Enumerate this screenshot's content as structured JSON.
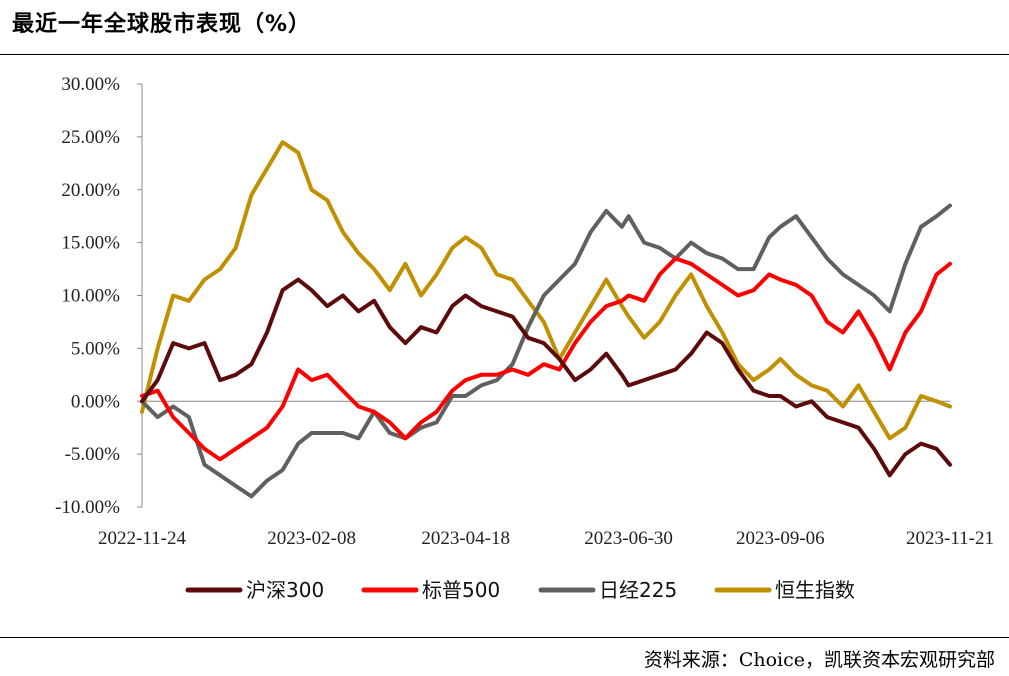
{
  "title": "最近一年全球股市表现（%）",
  "source": "资料来源：Choice，凯联资本宏观研究部",
  "chart_data": {
    "type": "line",
    "y_tick_labels": [
      "30.00%",
      "25.00%",
      "20.00%",
      "15.00%",
      "10.00%",
      "5.00%",
      "0.00%",
      "-5.00%",
      "-10.00%"
    ],
    "y_ticks": [
      30,
      25,
      20,
      15,
      10,
      5,
      0,
      -5,
      -10
    ],
    "ylim": [
      -10,
      30
    ],
    "x_tick_labels": [
      "2022-11-24",
      "2023-02-08",
      "2023-04-18",
      "2023-06-30",
      "2023-09-06",
      "2023-11-21"
    ],
    "x_range": [
      "2022-11-24",
      "2023-11-21"
    ],
    "legend_position": "bottom",
    "series": [
      {
        "name": "沪深300",
        "color": "#5c0a0a",
        "points": [
          [
            "2022-11-24",
            0.0
          ],
          [
            "2022-12-01",
            2.0
          ],
          [
            "2022-12-08",
            5.5
          ],
          [
            "2022-12-15",
            5.0
          ],
          [
            "2022-12-22",
            5.5
          ],
          [
            "2022-12-29",
            2.0
          ],
          [
            "2023-01-05",
            2.5
          ],
          [
            "2023-01-12",
            3.5
          ],
          [
            "2023-01-19",
            6.5
          ],
          [
            "2023-01-26",
            10.5
          ],
          [
            "2023-02-02",
            11.5
          ],
          [
            "2023-02-08",
            10.5
          ],
          [
            "2023-02-15",
            9.0
          ],
          [
            "2023-02-22",
            10.0
          ],
          [
            "2023-03-01",
            8.5
          ],
          [
            "2023-03-08",
            9.5
          ],
          [
            "2023-03-15",
            7.0
          ],
          [
            "2023-03-22",
            5.5
          ],
          [
            "2023-03-29",
            7.0
          ],
          [
            "2023-04-05",
            6.5
          ],
          [
            "2023-04-12",
            9.0
          ],
          [
            "2023-04-18",
            10.0
          ],
          [
            "2023-04-25",
            9.0
          ],
          [
            "2023-05-02",
            8.5
          ],
          [
            "2023-05-09",
            8.0
          ],
          [
            "2023-05-16",
            6.0
          ],
          [
            "2023-05-23",
            5.5
          ],
          [
            "2023-05-30",
            4.0
          ],
          [
            "2023-06-06",
            2.0
          ],
          [
            "2023-06-13",
            3.0
          ],
          [
            "2023-06-20",
            4.5
          ],
          [
            "2023-06-27",
            2.5
          ],
          [
            "2023-06-30",
            1.5
          ],
          [
            "2023-07-07",
            2.0
          ],
          [
            "2023-07-14",
            2.5
          ],
          [
            "2023-07-21",
            3.0
          ],
          [
            "2023-07-28",
            4.5
          ],
          [
            "2023-08-04",
            6.5
          ],
          [
            "2023-08-11",
            5.5
          ],
          [
            "2023-08-18",
            3.0
          ],
          [
            "2023-08-25",
            1.0
          ],
          [
            "2023-09-01",
            0.5
          ],
          [
            "2023-09-06",
            0.5
          ],
          [
            "2023-09-13",
            -0.5
          ],
          [
            "2023-09-20",
            0.0
          ],
          [
            "2023-09-27",
            -1.5
          ],
          [
            "2023-10-04",
            -2.0
          ],
          [
            "2023-10-11",
            -2.5
          ],
          [
            "2023-10-18",
            -4.5
          ],
          [
            "2023-10-25",
            -7.0
          ],
          [
            "2023-11-01",
            -5.0
          ],
          [
            "2023-11-08",
            -4.0
          ],
          [
            "2023-11-15",
            -4.5
          ],
          [
            "2023-11-21",
            -6.0
          ]
        ]
      },
      {
        "name": "标普500",
        "color": "#ff0000",
        "points": [
          [
            "2022-11-24",
            0.5
          ],
          [
            "2022-12-01",
            1.0
          ],
          [
            "2022-12-08",
            -1.5
          ],
          [
            "2022-12-15",
            -3.0
          ],
          [
            "2022-12-22",
            -4.5
          ],
          [
            "2022-12-29",
            -5.5
          ],
          [
            "2023-01-05",
            -4.5
          ],
          [
            "2023-01-12",
            -3.5
          ],
          [
            "2023-01-19",
            -2.5
          ],
          [
            "2023-01-26",
            -0.5
          ],
          [
            "2023-02-02",
            3.0
          ],
          [
            "2023-02-08",
            2.0
          ],
          [
            "2023-02-15",
            2.5
          ],
          [
            "2023-02-22",
            1.0
          ],
          [
            "2023-03-01",
            -0.5
          ],
          [
            "2023-03-08",
            -1.0
          ],
          [
            "2023-03-15",
            -2.0
          ],
          [
            "2023-03-22",
            -3.5
          ],
          [
            "2023-03-29",
            -2.0
          ],
          [
            "2023-04-05",
            -1.0
          ],
          [
            "2023-04-12",
            1.0
          ],
          [
            "2023-04-18",
            2.0
          ],
          [
            "2023-04-25",
            2.5
          ],
          [
            "2023-05-02",
            2.5
          ],
          [
            "2023-05-09",
            3.0
          ],
          [
            "2023-05-16",
            2.5
          ],
          [
            "2023-05-23",
            3.5
          ],
          [
            "2023-05-30",
            3.0
          ],
          [
            "2023-06-06",
            5.5
          ],
          [
            "2023-06-13",
            7.5
          ],
          [
            "2023-06-20",
            9.0
          ],
          [
            "2023-06-27",
            9.5
          ],
          [
            "2023-06-30",
            10.0
          ],
          [
            "2023-07-07",
            9.5
          ],
          [
            "2023-07-14",
            12.0
          ],
          [
            "2023-07-21",
            13.5
          ],
          [
            "2023-07-28",
            13.0
          ],
          [
            "2023-08-04",
            12.0
          ],
          [
            "2023-08-11",
            11.0
          ],
          [
            "2023-08-18",
            10.0
          ],
          [
            "2023-08-25",
            10.5
          ],
          [
            "2023-09-01",
            12.0
          ],
          [
            "2023-09-06",
            11.5
          ],
          [
            "2023-09-13",
            11.0
          ],
          [
            "2023-09-20",
            10.0
          ],
          [
            "2023-09-27",
            7.5
          ],
          [
            "2023-10-04",
            6.5
          ],
          [
            "2023-10-11",
            8.5
          ],
          [
            "2023-10-18",
            6.0
          ],
          [
            "2023-10-25",
            3.0
          ],
          [
            "2023-11-01",
            6.5
          ],
          [
            "2023-11-08",
            8.5
          ],
          [
            "2023-11-15",
            12.0
          ],
          [
            "2023-11-21",
            13.0
          ]
        ]
      },
      {
        "name": "日经225",
        "color": "#606060",
        "points": [
          [
            "2022-11-24",
            0.0
          ],
          [
            "2022-12-01",
            -1.5
          ],
          [
            "2022-12-08",
            -0.5
          ],
          [
            "2022-12-15",
            -1.5
          ],
          [
            "2022-12-22",
            -6.0
          ],
          [
            "2022-12-29",
            -7.0
          ],
          [
            "2023-01-05",
            -8.0
          ],
          [
            "2023-01-12",
            -9.0
          ],
          [
            "2023-01-19",
            -7.5
          ],
          [
            "2023-01-26",
            -6.5
          ],
          [
            "2023-02-02",
            -4.0
          ],
          [
            "2023-02-08",
            -3.0
          ],
          [
            "2023-02-15",
            -3.0
          ],
          [
            "2023-02-22",
            -3.0
          ],
          [
            "2023-03-01",
            -3.5
          ],
          [
            "2023-03-08",
            -1.0
          ],
          [
            "2023-03-15",
            -3.0
          ],
          [
            "2023-03-22",
            -3.5
          ],
          [
            "2023-03-29",
            -2.5
          ],
          [
            "2023-04-05",
            -2.0
          ],
          [
            "2023-04-12",
            0.5
          ],
          [
            "2023-04-18",
            0.5
          ],
          [
            "2023-04-25",
            1.5
          ],
          [
            "2023-05-02",
            2.0
          ],
          [
            "2023-05-09",
            3.5
          ],
          [
            "2023-05-16",
            7.0
          ],
          [
            "2023-05-23",
            10.0
          ],
          [
            "2023-05-30",
            11.5
          ],
          [
            "2023-06-06",
            13.0
          ],
          [
            "2023-06-13",
            16.0
          ],
          [
            "2023-06-20",
            18.0
          ],
          [
            "2023-06-27",
            16.5
          ],
          [
            "2023-06-30",
            17.5
          ],
          [
            "2023-07-07",
            15.0
          ],
          [
            "2023-07-14",
            14.5
          ],
          [
            "2023-07-21",
            13.5
          ],
          [
            "2023-07-28",
            15.0
          ],
          [
            "2023-08-04",
            14.0
          ],
          [
            "2023-08-11",
            13.5
          ],
          [
            "2023-08-18",
            12.5
          ],
          [
            "2023-08-25",
            12.5
          ],
          [
            "2023-09-01",
            15.5
          ],
          [
            "2023-09-06",
            16.5
          ],
          [
            "2023-09-13",
            17.5
          ],
          [
            "2023-09-20",
            15.5
          ],
          [
            "2023-09-27",
            13.5
          ],
          [
            "2023-10-04",
            12.0
          ],
          [
            "2023-10-11",
            11.0
          ],
          [
            "2023-10-18",
            10.0
          ],
          [
            "2023-10-25",
            8.5
          ],
          [
            "2023-11-01",
            13.0
          ],
          [
            "2023-11-08",
            16.5
          ],
          [
            "2023-11-15",
            17.5
          ],
          [
            "2023-11-21",
            18.5
          ]
        ]
      },
      {
        "name": "恒生指数",
        "color": "#c09000",
        "points": [
          [
            "2022-11-24",
            -1.0
          ],
          [
            "2022-12-01",
            5.0
          ],
          [
            "2022-12-08",
            10.0
          ],
          [
            "2022-12-15",
            9.5
          ],
          [
            "2022-12-22",
            11.5
          ],
          [
            "2022-12-29",
            12.5
          ],
          [
            "2023-01-05",
            14.5
          ],
          [
            "2023-01-12",
            19.5
          ],
          [
            "2023-01-19",
            22.0
          ],
          [
            "2023-01-26",
            24.5
          ],
          [
            "2023-02-02",
            23.5
          ],
          [
            "2023-02-08",
            20.0
          ],
          [
            "2023-02-15",
            19.0
          ],
          [
            "2023-02-22",
            16.0
          ],
          [
            "2023-03-01",
            14.0
          ],
          [
            "2023-03-08",
            12.5
          ],
          [
            "2023-03-15",
            10.5
          ],
          [
            "2023-03-22",
            13.0
          ],
          [
            "2023-03-29",
            10.0
          ],
          [
            "2023-04-05",
            12.0
          ],
          [
            "2023-04-12",
            14.5
          ],
          [
            "2023-04-18",
            15.5
          ],
          [
            "2023-04-25",
            14.5
          ],
          [
            "2023-05-02",
            12.0
          ],
          [
            "2023-05-09",
            11.5
          ],
          [
            "2023-05-16",
            9.5
          ],
          [
            "2023-05-23",
            7.5
          ],
          [
            "2023-05-30",
            4.0
          ],
          [
            "2023-06-06",
            6.5
          ],
          [
            "2023-06-13",
            9.0
          ],
          [
            "2023-06-20",
            11.5
          ],
          [
            "2023-06-27",
            9.0
          ],
          [
            "2023-06-30",
            8.0
          ],
          [
            "2023-07-07",
            6.0
          ],
          [
            "2023-07-14",
            7.5
          ],
          [
            "2023-07-21",
            10.0
          ],
          [
            "2023-07-28",
            12.0
          ],
          [
            "2023-08-04",
            9.0
          ],
          [
            "2023-08-11",
            6.5
          ],
          [
            "2023-08-18",
            3.5
          ],
          [
            "2023-08-25",
            2.0
          ],
          [
            "2023-09-01",
            3.0
          ],
          [
            "2023-09-06",
            4.0
          ],
          [
            "2023-09-13",
            2.5
          ],
          [
            "2023-09-20",
            1.5
          ],
          [
            "2023-09-27",
            1.0
          ],
          [
            "2023-10-04",
            -0.5
          ],
          [
            "2023-10-11",
            1.5
          ],
          [
            "2023-10-18",
            -1.0
          ],
          [
            "2023-10-25",
            -3.5
          ],
          [
            "2023-11-01",
            -2.5
          ],
          [
            "2023-11-08",
            0.5
          ],
          [
            "2023-11-15",
            0.0
          ],
          [
            "2023-11-21",
            -0.5
          ]
        ]
      }
    ]
  }
}
